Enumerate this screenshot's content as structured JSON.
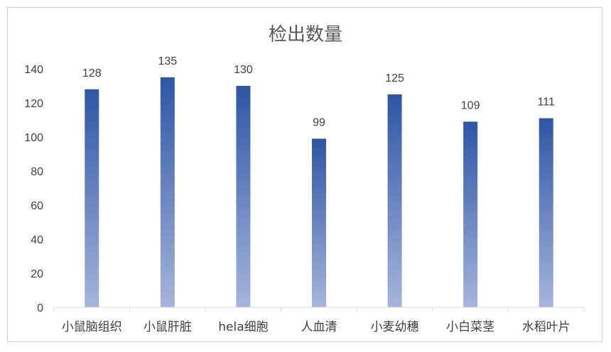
{
  "chart_data": {
    "type": "bar",
    "title": "检出数量",
    "categories": [
      "小鼠脑组织",
      "小鼠肝脏",
      "hela细胞",
      "人血清",
      "小麦幼穗",
      "小白菜茎",
      "水稻叶片"
    ],
    "values": [
      128,
      135,
      130,
      99,
      125,
      109,
      111
    ],
    "xlabel": "",
    "ylabel": "",
    "ylim": [
      0,
      140
    ],
    "yticks": [
      0,
      20,
      40,
      60,
      80,
      100,
      120,
      140
    ],
    "grid": false,
    "legend": "none",
    "data_labels": true,
    "colors": {
      "bar_top": "#2e56a6",
      "bar_bottom": "#a5b5da",
      "axis": "#d9d9d9",
      "text": "#404040",
      "title": "#595959"
    }
  }
}
